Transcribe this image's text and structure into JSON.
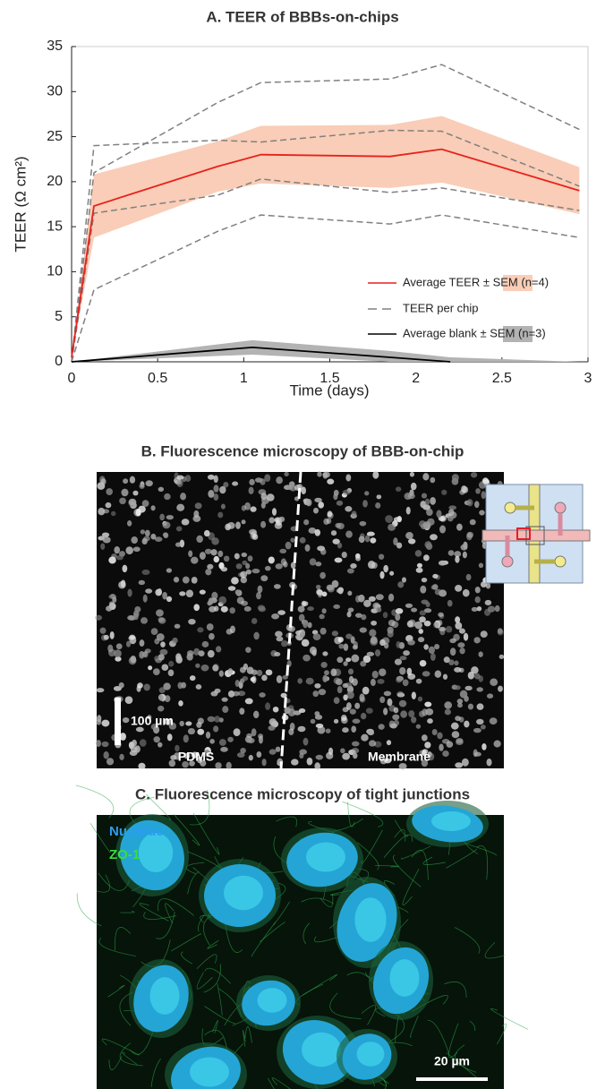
{
  "chart_data": {
    "type": "line",
    "title": "A. TEER of BBBs-on-chips",
    "x_label": "Time (days)",
    "y_label": "TEER (Ω cm²)",
    "x": [
      0,
      0.13,
      0.85,
      1.1,
      1.85,
      2.15,
      2.95
    ],
    "xlim": [
      0,
      3
    ],
    "xticks": [
      0,
      0.5,
      1,
      1.5,
      2,
      2.5,
      3
    ],
    "ylim": [
      0,
      35
    ],
    "yticks": [
      0,
      5,
      10,
      15,
      20,
      25,
      30,
      35
    ],
    "legend": "lower right",
    "series": [
      {
        "name": "Average TEER ± SEM (n=4)",
        "color": "#e8211c",
        "band_color": "#f9cdb7",
        "values": [
          0.5,
          17.3,
          21.7,
          23.0,
          22.8,
          23.6,
          19.0
        ],
        "error": [
          0,
          3.5,
          2.8,
          3.2,
          3.5,
          3.7,
          2.6
        ]
      },
      {
        "name": "TEER per chip",
        "color": "#808080",
        "dashed": true,
        "chips": [
          [
            0,
            24.0,
            24.6,
            24.4,
            25.7,
            25.6,
            19.5
          ],
          [
            0,
            21.0,
            28.8,
            31.0,
            31.4,
            33.0,
            25.8
          ],
          [
            0,
            16.5,
            18.5,
            20.3,
            18.8,
            19.3,
            16.8
          ],
          [
            0,
            8.0,
            14.5,
            16.3,
            15.3,
            16.3,
            13.8
          ]
        ]
      },
      {
        "name": "Average blank ± SEM (n=3)",
        "color": "#000000",
        "band_color": "#b3b3b3",
        "x": [
          0,
          1.05,
          1.85,
          2.2,
          2.95
        ],
        "values": [
          0,
          1.6,
          0.5,
          0,
          null
        ],
        "error": [
          0,
          0.8,
          0.7,
          0.5,
          0
        ]
      }
    ]
  },
  "panel_b": {
    "title": "B. Fluorescence microscopy of BBB-on-chip",
    "scale_bar": "100 µm",
    "left_label": "PDMS",
    "right_label": "Membrane"
  },
  "panel_c": {
    "title": "C. Fluorescence microscopy of tight junctions",
    "channels": [
      "NucBlue",
      "ZO-1"
    ],
    "scale_bar": "20 µm"
  }
}
